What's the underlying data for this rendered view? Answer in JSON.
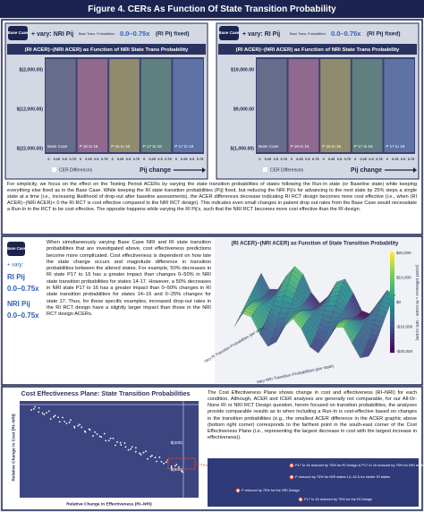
{
  "title": "Figure 4. CERs As Function Of State Transition Probability",
  "top_panels": [
    {
      "badge": "Base Case",
      "vary": "+ vary: NRI Pij",
      "vary_note": "Base Trans. Probabilities:",
      "range": "0.0–0.75x",
      "fixed": "(RI Pij fixed)",
      "chart_title": "(RI ACER)−(NRI ACER) as Function of NRI State Trans Probability",
      "yticks": [
        "$(2,000.00)",
        "$(12,000.00)",
        "$(22,000.00)"
      ],
      "groups": [
        "Base Case",
        "P 16 to 15",
        "P 15 to 16",
        "P 17 to 16",
        "P 17 to 18"
      ],
      "xticks": [
        "0",
        "0.25",
        "0.5",
        "0.75"
      ],
      "legend": "CER Differences",
      "xlabel": "Pij change"
    },
    {
      "badge": "Base Case",
      "vary": "+ vary: RI Pij",
      "vary_note": "Base Trans. Probabilities:",
      "range": "0.0–0.75x",
      "fixed": "(RI Pij fixed)",
      "chart_title": "(RI ACER)−(NRI ACER) as Function of NRI State Trans Probability",
      "yticks": [
        "$19,000.00",
        "$9,000.00",
        "$(1,000.00)"
      ],
      "groups": [
        "Base Case",
        "P 16 to 15",
        "P 15 to 16",
        "P 17 to 16",
        "P 17 to 18"
      ],
      "xticks": [
        "0",
        "0.25",
        "0.5",
        "0.75"
      ],
      "legend": "CER Differences",
      "xlabel": "Pij change"
    }
  ],
  "summary": "For simplicity, we focus on the effect on the Testing Period ACERs by varying the state transition probabilities of states following the Run-In state (or Baseline state) while keeping everything else fixed as in the Base Case. While keeping the RI state transition probabilities (Pij) fixed, but reducing the NRI Pij's for advancing to the next state by 25% steps a single state at a time (i.e., increasing likelihood of drop-out after baseline assessments), the ACER differences decrease indicating RI RCT design becomes more cost effective (i.e., when (RI ACER)−(NRI ACER)< 0 the RI RCT is cost effective compared to the NRI RCT design). This indicates even small changes in patient drop out rates from the Base Case would necessitate a Run-In in the RCT to be cost effective. The opposite happens while varying the RI Pij's, such that the NRI RCT becomes more cost effective than the RI design.",
  "middle": {
    "badge": "Base Case",
    "vary": "+ vary:",
    "ri": "RI Pij",
    "ri_range": "0.0–0.75x",
    "nri": "NRI Pij",
    "nri_range": "0.0–0.75x",
    "text": "When simultaneously varying Base Case NRI and RI state transition probabilities that are investigated above, cost effectiveness predictions become more complicated. Cost effectiveness is dependent on how late the state change occurs and magnitude difference in transition probabilities between the altered states. For example, 50% decreases in RI state P17 to 16 has a greater impact than changes 0–50% in NRI state transition probabilities for states 14-17. However, a 50% decreases in NRI state P17 to 16 has a greater impact than 0–50% changes in RI state transition probabilities for states 14–16 and 0–25% changes for state 17. Thus, for these specific examples, increased drop-out rates in the RI RCT design have a slightly larger impact than those in the NRI RCT design ACERs.",
    "chart_title": "(RI ACER)−(NRI ACER) as Function of State Transition Probability",
    "colorbar": [
      "$20,000",
      "$10,000",
      "$0",
      "-$10,000",
      "-$20,000"
    ],
    "colorbar_label": "(ACER Difference = RI ACER − NRI ACER)",
    "axis_x": "Vary NRI Transition Probabilities (per state)",
    "axis_y": "Vary RI Transition Probabilities (per state)"
  },
  "bottom": {
    "chart_title": "Cost Effectiveness Plane: State Transition Probabilities",
    "ylabel": "Relative Change in Cost (RI–NRI)",
    "xlabel": "Relative Change in Effectiveness (RI–NRI)",
    "yticks": [
      "$(400)",
      "$(600)"
    ],
    "text": "The Cost Effectiveness Plane shows change in cost and effectiveness (RI–NRI) for each condition. Although, ACER and ICER analyses are generally not comparable, for our All-Or-None RI or NRI RCT Design question, herein focused on transition probabilities, the analyses provide comparable results as to when including a Run-In is cost-effective based on changes in the transition probabilities (e.g., the smallest ACER difference in the ACER graphic above (bottom right corner) corresponds to the farthest point in the south-east corner of the Cost Effectiveness Plane (i.e., representing the largest decrease in cost with the largest increase in effectiveness)).",
    "legend": [
      "P17 to 16 reduced by 75% for RI Design & P17 to 16 reduced by 75% for NRI states",
      "P reduced by 75% for NRI states 14–16 & for earlier RI states",
      "P reduced by 75% for the NRI Design",
      "P17 to 16 reduced by 75% for the RI Design"
    ]
  }
}
